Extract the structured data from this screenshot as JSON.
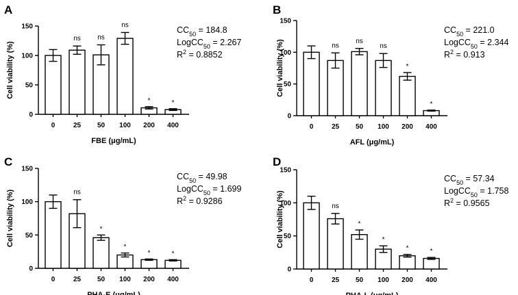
{
  "chart_data": [
    {
      "type": "bar",
      "panel": "A",
      "categories": [
        "0",
        "25",
        "50",
        "100",
        "200",
        "400"
      ],
      "values": [
        100,
        109,
        101,
        129,
        11,
        8
      ],
      "errors": [
        10,
        7,
        17,
        10,
        2,
        1.5
      ],
      "significance": [
        "",
        "ns",
        "ns",
        "ns",
        "*",
        "*"
      ],
      "xlabel": "FBE (μg/mL)",
      "ylabel": "Cell viability (%)",
      "ylim": [
        0,
        150
      ],
      "yticks": [
        "0",
        "50",
        "100",
        "150"
      ],
      "stats": {
        "cc50": "184.8",
        "logcc50": "2.267",
        "r2": "0.8852"
      }
    },
    {
      "type": "bar",
      "panel": "B",
      "categories": [
        "0",
        "25",
        "50",
        "100",
        "200",
        "400"
      ],
      "values": [
        100,
        87,
        101,
        87,
        62,
        8
      ],
      "errors": [
        10,
        12,
        5,
        11,
        6,
        0.8
      ],
      "significance": [
        "",
        "ns",
        "ns",
        "ns",
        "*",
        "*"
      ],
      "xlabel": "AFL (μg/mL)",
      "ylabel": "Cell viability (%)",
      "ylim": [
        0,
        150
      ],
      "yticks": [
        "0",
        "50",
        "100",
        "150"
      ],
      "stats": {
        "cc50": "221.0",
        "logcc50": "2.344",
        "r2": "0.913"
      }
    },
    {
      "type": "bar",
      "panel": "C",
      "categories": [
        "0",
        "25",
        "50",
        "100",
        "200",
        "400"
      ],
      "values": [
        100,
        82,
        46,
        20,
        13,
        12
      ],
      "errors": [
        10,
        21,
        4,
        3,
        1,
        1
      ],
      "significance": [
        "",
        "ns",
        "*",
        "*",
        "*",
        "*"
      ],
      "xlabel": "PHA-E (μg/mL)",
      "ylabel": "Cell viability (%)",
      "ylim": [
        0,
        150
      ],
      "yticks": [
        "0",
        "50",
        "100",
        "150"
      ],
      "stats": {
        "cc50": "49.98",
        "logcc50": "1.699",
        "r2": "0.9286"
      }
    },
    {
      "type": "bar",
      "panel": "D",
      "categories": [
        "0",
        "25",
        "50",
        "100",
        "200",
        "400"
      ],
      "values": [
        100,
        76,
        52,
        30,
        20,
        16
      ],
      "errors": [
        10,
        8,
        7,
        5,
        2,
        1.5
      ],
      "significance": [
        "",
        "ns",
        "*",
        "*",
        "*",
        "*"
      ],
      "xlabel": "PHA-L (μg/mL)",
      "ylabel": "Cell viability (%)",
      "ylim": [
        0,
        150
      ],
      "yticks": [
        "0",
        "50",
        "100",
        "150"
      ],
      "stats": {
        "cc50": "57.34",
        "logcc50": "1.758",
        "r2": "0.9565"
      }
    }
  ]
}
